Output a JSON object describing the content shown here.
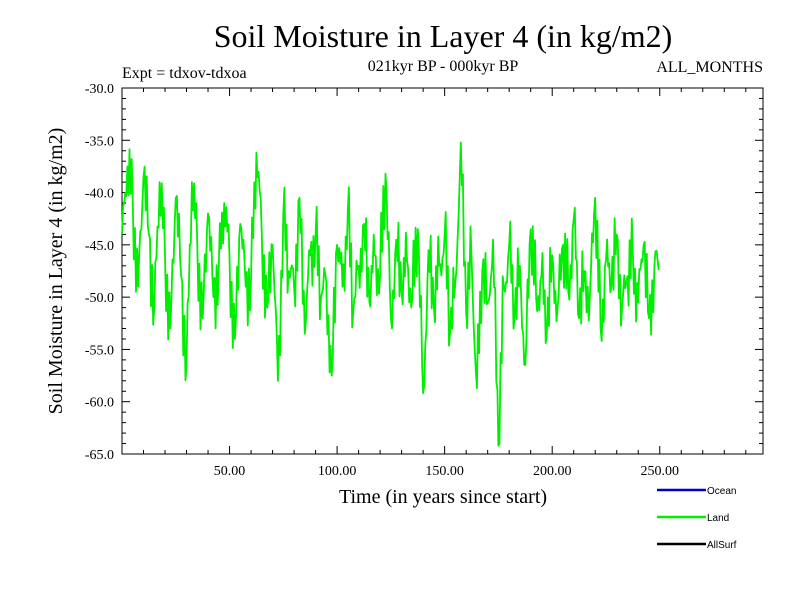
{
  "chart_data": {
    "type": "line",
    "title": "Soil Moisture in Layer 4 (in kg/m2)",
    "subtitle_left": "Expt = tdxov-tdxoa",
    "subtitle_center": "021kyr BP - 000kyr BP",
    "subtitle_right": "ALL_MONTHS",
    "xlabel": "Time (in years since start)",
    "ylabel": "Soil Moisture in Layer 4 (in kg/m2)",
    "xlim": [
      0,
      298
    ],
    "ylim": [
      -65,
      -30
    ],
    "x_ticks": [
      50,
      100,
      150,
      200,
      250
    ],
    "x_tick_labels": [
      "50.00",
      "100.00",
      "150.00",
      "200.00",
      "250.00"
    ],
    "y_ticks": [
      -30,
      -35,
      -40,
      -45,
      -50,
      -55,
      -60,
      -65
    ],
    "y_tick_labels": [
      "-30.0",
      "-35.0",
      "-40.0",
      "-45.0",
      "-50.0",
      "-55.0",
      "-60.0",
      "-65.0"
    ],
    "legend_position": "bottom-right",
    "legend": [
      {
        "name": "Ocean",
        "color": "#0000cc"
      },
      {
        "name": "Land",
        "color": "#00ee00"
      },
      {
        "name": "AllSurf",
        "color": "#000000"
      }
    ],
    "series": [
      {
        "name": "Land",
        "color": "#00ee00",
        "x_start": 0,
        "x_step": 2.5,
        "values": [
          -44,
          -37.5,
          -41,
          -49,
          -38.5,
          -44,
          -51,
          -39,
          -46,
          -53,
          -40.5,
          -48,
          -56.5,
          -39,
          -45,
          -52,
          -42,
          -50,
          -47,
          -41,
          -46.5,
          -54,
          -43,
          -49,
          -48,
          -36.2,
          -44,
          -51,
          -45,
          -58,
          -42,
          -47.5,
          -49,
          -40.5,
          -53.5,
          -46,
          -44,
          -50,
          -48.5,
          -57.5,
          -45,
          -49,
          -41.5,
          -51.5,
          -47,
          -43,
          -50.5,
          -46,
          -48,
          -38.2,
          -52,
          -44.5,
          -49.5,
          -46.5,
          -50,
          -43.5,
          -59.2,
          -45.5,
          -51,
          -47,
          -44,
          -53.5,
          -48.5,
          -35.2,
          -51.5,
          -46,
          -58.7,
          -47.5,
          -50.5,
          -44.5,
          -64.2,
          -49,
          -45,
          -52,
          -47,
          -56.5,
          -43.5,
          -50,
          -48,
          -53.5,
          -46,
          -51,
          -45,
          -49.5,
          -42.5,
          -52,
          -47.5,
          -50,
          -40.5,
          -53,
          -46.5,
          -49,
          -44,
          -51,
          -48,
          -46,
          -50.5,
          -45,
          -52,
          -47
        ]
      }
    ]
  }
}
